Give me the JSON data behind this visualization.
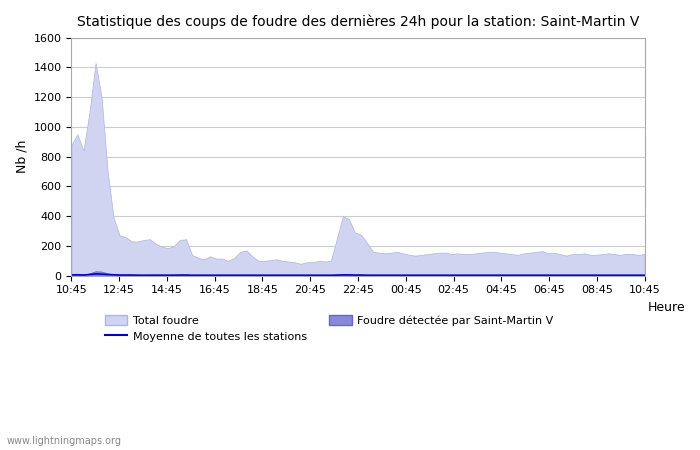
{
  "title": "Statistique des coups de foudre des dernières 24h pour la station: Saint-Martin V",
  "xlabel": "Heure",
  "ylabel": "Nb /h",
  "ylim": [
    0,
    1600
  ],
  "yticks": [
    0,
    200,
    400,
    600,
    800,
    1000,
    1200,
    1400,
    1600
  ],
  "x_labels": [
    "10:45",
    "12:45",
    "14:45",
    "16:45",
    "18:45",
    "20:45",
    "22:45",
    "00:45",
    "02:45",
    "04:45",
    "06:45",
    "08:45",
    "10:45"
  ],
  "background_color": "#ffffff",
  "plot_bg_color": "#ffffff",
  "grid_color": "#cccccc",
  "total_foudre_color": "#d0d4f0",
  "total_foudre_edge": "#b0b4e0",
  "local_foudre_color": "#8888dd",
  "local_foudre_edge": "#6666cc",
  "moyenne_color": "#0000cc",
  "watermark": "www.lightningmaps.org",
  "legend_total": "Total foudre",
  "legend_local": "Foudre détectée par Saint-Martin V",
  "legend_moyenne": "Moyenne de toutes les stations",
  "total_foudre": [
    880,
    950,
    840,
    1100,
    1430,
    1200,
    700,
    390,
    270,
    260,
    230,
    230,
    240,
    245,
    215,
    195,
    185,
    200,
    240,
    245,
    140,
    120,
    110,
    130,
    115,
    115,
    100,
    120,
    160,
    170,
    130,
    100,
    100,
    105,
    110,
    100,
    95,
    90,
    80,
    90,
    90,
    100,
    95,
    100,
    250,
    400,
    380,
    290,
    275,
    220,
    160,
    155,
    150,
    155,
    160,
    150,
    140,
    135,
    140,
    145,
    150,
    155,
    155,
    145,
    150,
    145,
    145,
    150,
    155,
    160,
    160,
    155,
    150,
    145,
    140,
    150,
    155,
    160,
    165,
    150,
    155,
    145,
    135,
    145,
    145,
    150,
    140,
    140,
    145,
    150,
    145,
    140,
    148,
    145,
    140,
    145
  ],
  "local_foudre": [
    10,
    12,
    8,
    15,
    30,
    28,
    15,
    10,
    8,
    8,
    8,
    7,
    6,
    7,
    8,
    7,
    7,
    8,
    8,
    8,
    5,
    5,
    4,
    5,
    4,
    4,
    3,
    3,
    5,
    6,
    5,
    3,
    3,
    3,
    3,
    3,
    3,
    3,
    3,
    3,
    3,
    3,
    3,
    3,
    8,
    10,
    9,
    7,
    7,
    6,
    5,
    5,
    5,
    5,
    5,
    5,
    5,
    5,
    5,
    5,
    5,
    5,
    5,
    5,
    5,
    5,
    5,
    5,
    5,
    5,
    5,
    5,
    5,
    5,
    5,
    5,
    5,
    5,
    5,
    5,
    5,
    5,
    5,
    5,
    5,
    5,
    5,
    5,
    5,
    5,
    5,
    5,
    5,
    5,
    5,
    5
  ],
  "moyenne": [
    5,
    6,
    4,
    8,
    12,
    10,
    8,
    6,
    4,
    4,
    4,
    3,
    3,
    3,
    3,
    3,
    3,
    3,
    4,
    4,
    3,
    3,
    3,
    3,
    3,
    3,
    3,
    3,
    3,
    3,
    3,
    3,
    3,
    3,
    3,
    3,
    3,
    3,
    3,
    3,
    3,
    3,
    3,
    3,
    4,
    5,
    5,
    4,
    4,
    3,
    3,
    3,
    3,
    3,
    3,
    3,
    3,
    3,
    3,
    3,
    3,
    3,
    3,
    3,
    3,
    3,
    3,
    3,
    3,
    3,
    3,
    3,
    3,
    3,
    3,
    3,
    3,
    3,
    3,
    3,
    3,
    3,
    3,
    3,
    3,
    3,
    3,
    3,
    3,
    3,
    3,
    3,
    3,
    3,
    3,
    3
  ]
}
